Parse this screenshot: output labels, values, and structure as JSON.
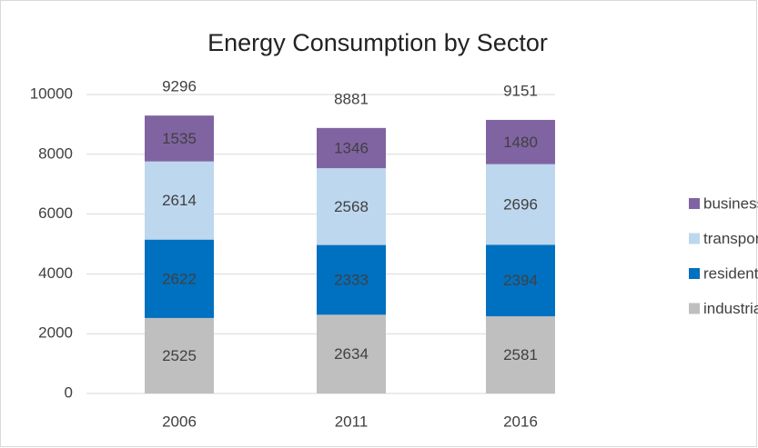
{
  "chart_data": {
    "type": "stacked_bar",
    "title": "Energy Consumption by Sector",
    "categories": [
      "2006",
      "2011",
      "2016"
    ],
    "series": [
      {
        "name": "industrial",
        "color": "#bfbfbf",
        "values": [
          2525,
          2634,
          2581
        ]
      },
      {
        "name": "residential",
        "color": "#0070c0",
        "values": [
          2622,
          2333,
          2394
        ]
      },
      {
        "name": "transport",
        "color": "#bdd7ee",
        "values": [
          2614,
          2568,
          2696
        ]
      },
      {
        "name": "business",
        "color": "#8064a2",
        "values": [
          1535,
          1346,
          1480
        ]
      }
    ],
    "totals": [
      9296,
      8881,
      9151
    ],
    "ylim": [
      0,
      10000
    ],
    "yticks": [
      0,
      2000,
      4000,
      6000,
      8000,
      10000
    ],
    "grid": true,
    "legend": "right"
  }
}
